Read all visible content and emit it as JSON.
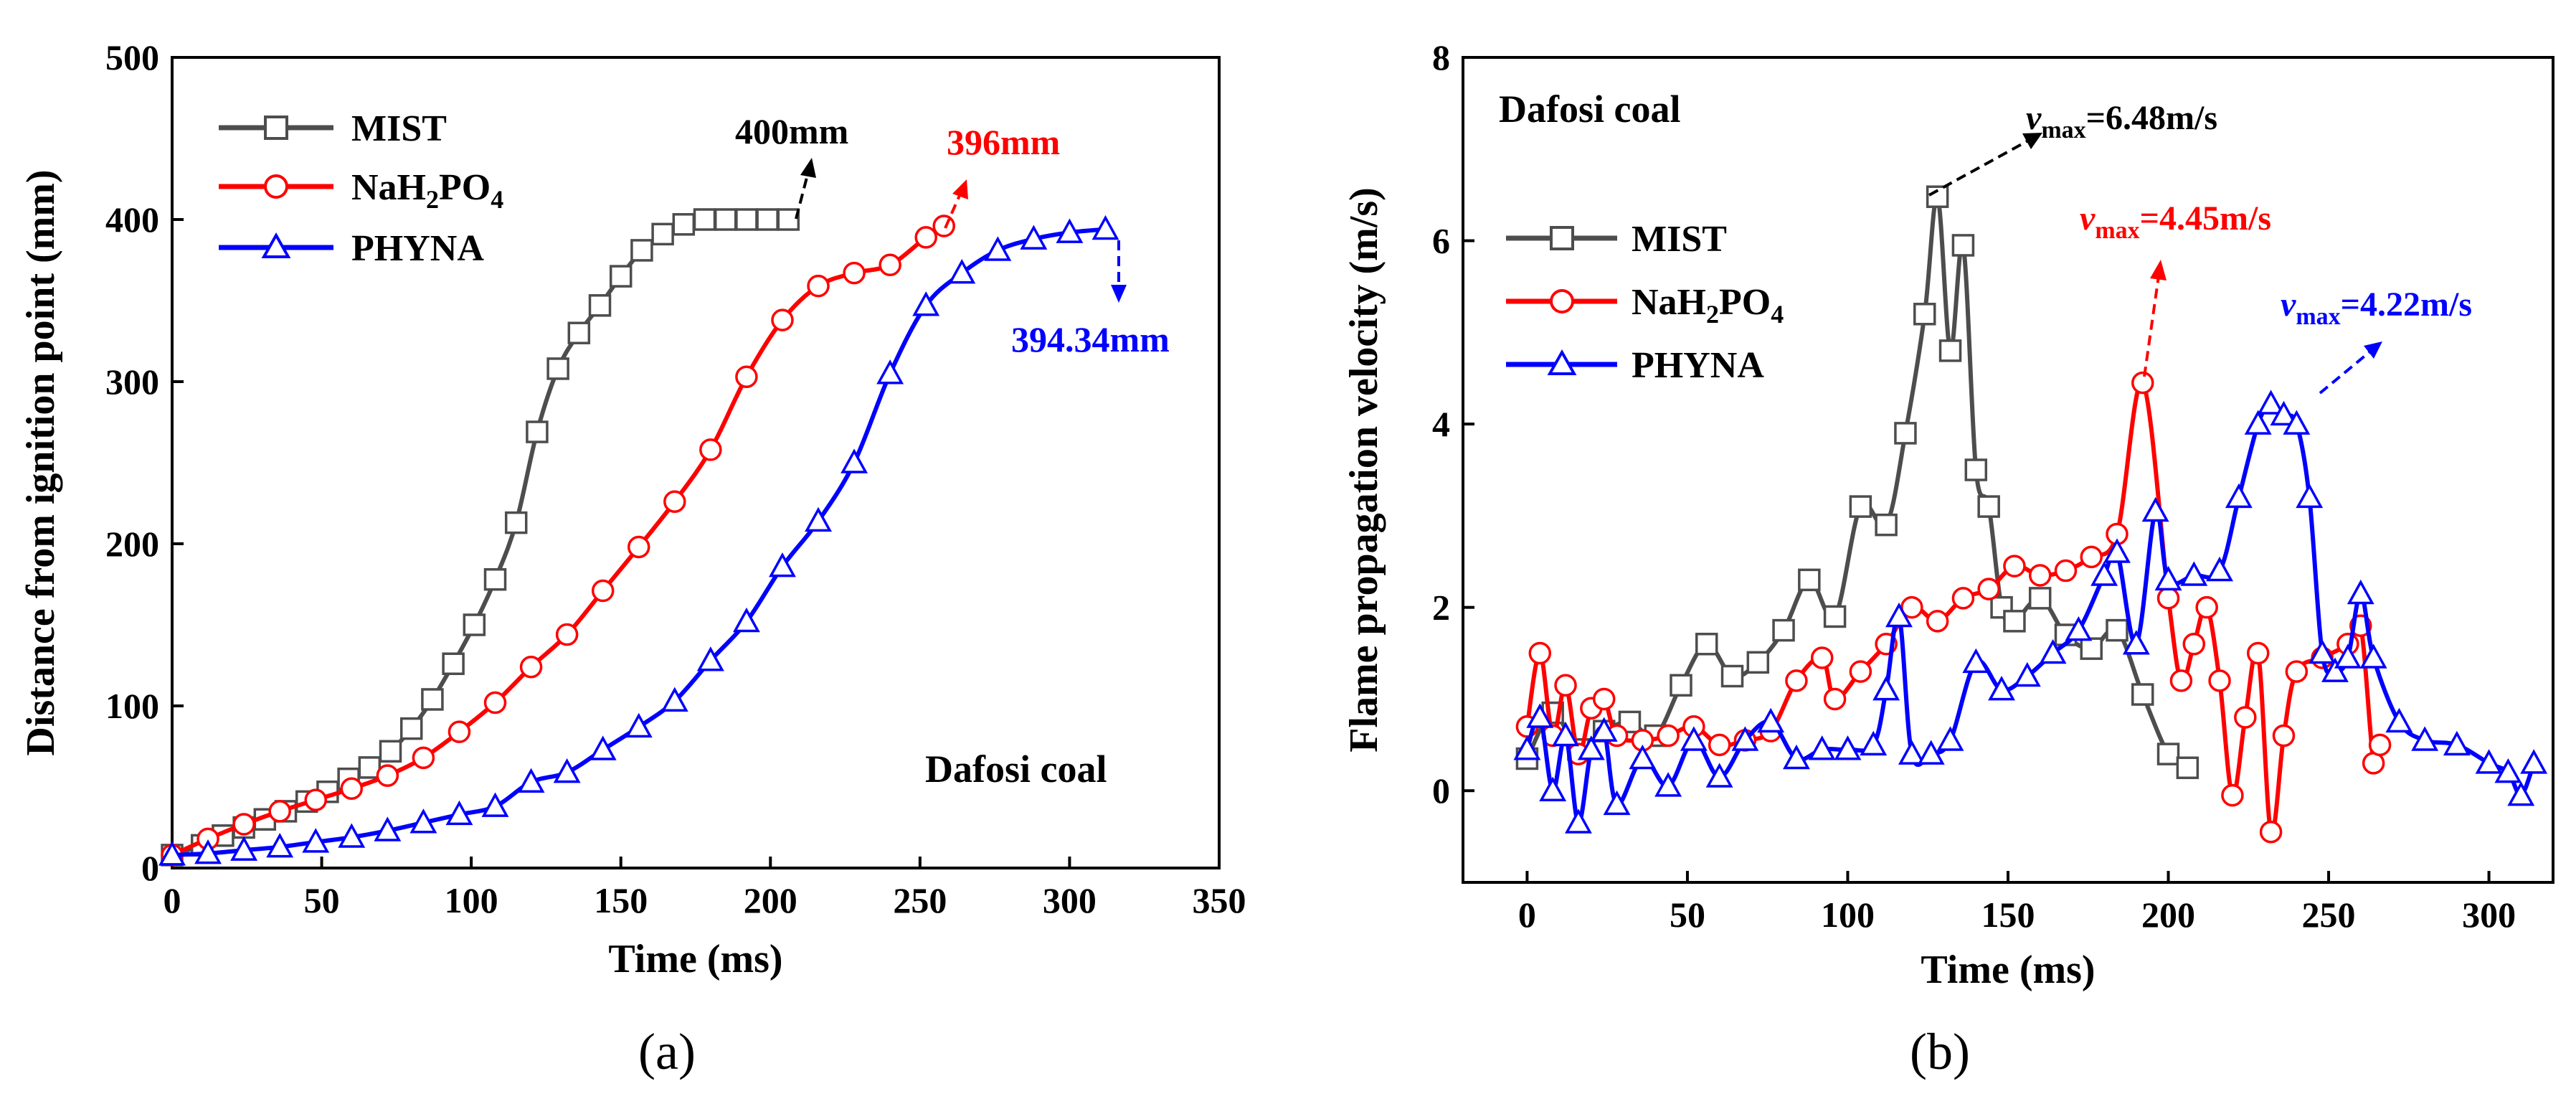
{
  "chart_data": [
    {
      "type": "line",
      "panel_label": "(a)",
      "xlabel": "Time (ms)",
      "ylabel": "Distance from ignition point (mm)",
      "xlim": [
        0,
        350
      ],
      "ylim": [
        0,
        500
      ],
      "xticks": [
        0,
        50,
        100,
        150,
        200,
        250,
        300,
        350
      ],
      "yticks": [
        0,
        100,
        200,
        300,
        400,
        500
      ],
      "annotation_text": "Dafosi coal",
      "legend": [
        "MIST",
        "NaH2PO4",
        "PHYNA"
      ],
      "series": [
        {
          "name": "MIST",
          "color": "#4d4d4d",
          "marker": "square",
          "x": [
            0,
            10,
            17,
            24,
            31,
            38,
            45,
            52,
            59,
            66,
            73,
            80,
            87,
            94,
            101,
            108,
            115,
            122,
            129,
            136,
            143,
            150,
            157,
            164,
            171,
            178,
            185,
            192,
            199,
            206
          ],
          "y": [
            8,
            14,
            20,
            25,
            30,
            35,
            41,
            47,
            55,
            62,
            72,
            86,
            104,
            126,
            150,
            178,
            213,
            269,
            308,
            330,
            347,
            365,
            381,
            391,
            397,
            400,
            400,
            400,
            400,
            400
          ]
        },
        {
          "name": "NaH2PO4",
          "color": "#ff0000",
          "marker": "circle",
          "x": [
            0,
            12,
            24,
            36,
            48,
            60,
            72,
            84,
            96,
            108,
            120,
            132,
            144,
            156,
            168,
            180,
            192,
            204,
            216,
            228,
            240,
            252,
            258
          ],
          "y": [
            8,
            18,
            27,
            35,
            42,
            49,
            57,
            68,
            84,
            102,
            124,
            144,
            171,
            198,
            226,
            258,
            303,
            338,
            359,
            367,
            372,
            389,
            396
          ]
        },
        {
          "name": "PHYNA",
          "color": "#0000ff",
          "marker": "triangle",
          "x": [
            0,
            12,
            24,
            36,
            48,
            60,
            72,
            84,
            96,
            108,
            120,
            132,
            144,
            156,
            168,
            180,
            192,
            204,
            216,
            228,
            240,
            252,
            264,
            276,
            288,
            300,
            312
          ],
          "y": [
            8,
            9,
            11,
            13,
            16,
            19,
            23,
            28,
            33,
            38,
            53,
            59,
            73,
            87,
            103,
            128,
            152,
            186,
            214,
            250,
            305,
            347,
            367,
            381,
            388,
            392,
            394
          ]
        }
      ],
      "callouts": [
        {
          "text": "400mm",
          "color": "#000000"
        },
        {
          "text": "396mm",
          "color": "#ff0000"
        },
        {
          "text": "394.34mm",
          "color": "#0000ff"
        }
      ]
    },
    {
      "type": "line",
      "panel_label": "(b)",
      "xlabel": "Time (ms)",
      "ylabel": "Flame propagation velocity (m/s)",
      "xlim": [
        -20,
        320
      ],
      "ylim": [
        -1,
        8
      ],
      "xticks": [
        0,
        50,
        100,
        150,
        200,
        250,
        300
      ],
      "yticks": [
        0,
        2,
        4,
        6,
        8
      ],
      "annotation_text": "Dafosi coal",
      "legend": [
        "MIST",
        "NaH2PO4",
        "PHYNA"
      ],
      "series": [
        {
          "name": "MIST",
          "color": "#4d4d4d",
          "marker": "square",
          "x": [
            0,
            8,
            16,
            24,
            32,
            40,
            48,
            56,
            64,
            72,
            80,
            88,
            96,
            104,
            112,
            118,
            124,
            128,
            132,
            136,
            140,
            144,
            148,
            152,
            160,
            168,
            176,
            184,
            192,
            200,
            206
          ],
          "y": [
            0.35,
            0.85,
            0.45,
            0.65,
            0.75,
            0.6,
            1.15,
            1.6,
            1.25,
            1.4,
            1.75,
            2.3,
            1.9,
            3.1,
            2.9,
            3.9,
            5.2,
            6.48,
            4.8,
            5.95,
            3.5,
            3.1,
            2.0,
            1.85,
            2.1,
            1.7,
            1.55,
            1.75,
            1.05,
            0.4,
            0.25
          ]
        },
        {
          "name": "NaH2PO4",
          "color": "#ff0000",
          "marker": "circle",
          "x": [
            0,
            4,
            8,
            12,
            16,
            20,
            24,
            28,
            36,
            44,
            52,
            60,
            68,
            76,
            84,
            92,
            96,
            104,
            112,
            120,
            128,
            136,
            144,
            152,
            160,
            168,
            176,
            184,
            192,
            200,
            204,
            208,
            212,
            216,
            220,
            224,
            228,
            232,
            236,
            240,
            248,
            256,
            260,
            264,
            266
          ],
          "y": [
            0.7,
            1.5,
            0.6,
            1.15,
            0.4,
            0.9,
            1.0,
            0.6,
            0.55,
            0.6,
            0.7,
            0.5,
            0.55,
            0.65,
            1.2,
            1.45,
            1.0,
            1.3,
            1.6,
            2.0,
            1.85,
            2.1,
            2.2,
            2.45,
            2.35,
            2.4,
            2.55,
            2.8,
            4.45,
            2.1,
            1.2,
            1.6,
            2.0,
            1.2,
            -0.05,
            0.8,
            1.5,
            -0.45,
            0.6,
            1.3,
            1.45,
            1.6,
            1.8,
            0.3,
            0.5
          ]
        },
        {
          "name": "PHYNA",
          "color": "#0000ff",
          "marker": "triangle",
          "x": [
            0,
            4,
            8,
            12,
            16,
            20,
            24,
            28,
            36,
            44,
            52,
            60,
            68,
            76,
            84,
            92,
            100,
            108,
            112,
            116,
            120,
            126,
            132,
            140,
            148,
            156,
            164,
            172,
            180,
            184,
            190,
            196,
            200,
            208,
            216,
            222,
            228,
            232,
            236,
            240,
            244,
            248,
            252,
            256,
            260,
            264,
            272,
            280,
            290,
            300,
            306,
            310,
            314
          ],
          "y": [
            0.45,
            0.8,
            0.0,
            0.6,
            -0.35,
            0.45,
            0.65,
            -0.15,
            0.35,
            0.05,
            0.55,
            0.15,
            0.55,
            0.75,
            0.35,
            0.45,
            0.45,
            0.5,
            1.1,
            1.9,
            0.4,
            0.4,
            0.55,
            1.4,
            1.1,
            1.25,
            1.5,
            1.75,
            2.35,
            2.6,
            1.6,
            3.05,
            2.3,
            2.35,
            2.4,
            3.2,
            4.0,
            4.22,
            4.1,
            4.0,
            3.2,
            1.5,
            1.3,
            1.45,
            2.15,
            1.45,
            0.75,
            0.55,
            0.5,
            0.3,
            0.2,
            -0.05,
            0.3
          ]
        }
      ],
      "callouts": [
        {
          "prefix": "v",
          "sub": "max",
          "value": "=6.48m/s",
          "color": "#000000"
        },
        {
          "prefix": "v",
          "sub": "max",
          "value": "=4.45m/s",
          "color": "#ff0000"
        },
        {
          "prefix": "v",
          "sub": "max",
          "value": "=4.22m/s",
          "color": "#0000ff"
        }
      ]
    }
  ],
  "legend_labels": {
    "mist": "MIST",
    "nah2po4_parts": [
      "NaH",
      "2",
      "PO",
      "4"
    ],
    "phyna": "PHYNA"
  }
}
